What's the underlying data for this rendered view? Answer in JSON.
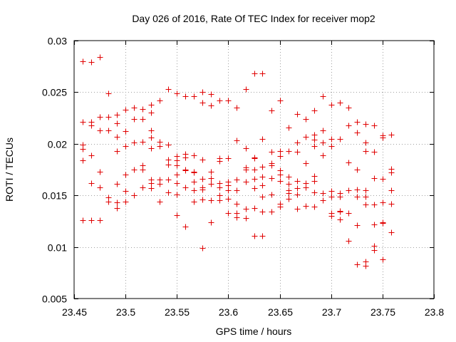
{
  "chart_data": {
    "type": "scatter",
    "title": "Day 026 of 2016, Rate Of TEC Index for receiver mop2",
    "xlabel": "GPS time / hours",
    "ylabel": "ROTI / TECUs",
    "xlim": [
      23.45,
      23.8
    ],
    "ylim": [
      0.005,
      0.03
    ],
    "grid": true,
    "marker": "plus",
    "color": "#e00000",
    "xticks": [
      23.45,
      23.5,
      23.55,
      23.6,
      23.65,
      23.7,
      23.75,
      23.8
    ],
    "xtick_labels": [
      "23.45",
      "23.5",
      "23.55",
      "23.6",
      "23.65",
      "23.7",
      "23.75",
      "23.8"
    ],
    "yticks": [
      0.005,
      0.01,
      0.015,
      0.02,
      0.025,
      0.03
    ],
    "ytick_labels": [
      "0.005",
      "0.01",
      "0.015",
      "0.02",
      "0.025",
      "0.03"
    ],
    "points": [
      [
        23.4583,
        0.028
      ],
      [
        23.4583,
        0.0221
      ],
      [
        23.4583,
        0.0199
      ],
      [
        23.4583,
        0.0195
      ],
      [
        23.4583,
        0.0184
      ],
      [
        23.4583,
        0.0126
      ],
      [
        23.4667,
        0.0279
      ],
      [
        23.4667,
        0.0221
      ],
      [
        23.4667,
        0.0218
      ],
      [
        23.4667,
        0.0189
      ],
      [
        23.4667,
        0.0162
      ],
      [
        23.4667,
        0.0126
      ],
      [
        23.475,
        0.0284
      ],
      [
        23.475,
        0.0226
      ],
      [
        23.475,
        0.0213
      ],
      [
        23.475,
        0.0173
      ],
      [
        23.475,
        0.0158
      ],
      [
        23.475,
        0.0126
      ],
      [
        23.4833,
        0.0249
      ],
      [
        23.4833,
        0.0226
      ],
      [
        23.4833,
        0.0213
      ],
      [
        23.4833,
        0.0148
      ],
      [
        23.4833,
        0.0144
      ],
      [
        23.4917,
        0.0228
      ],
      [
        23.4917,
        0.022
      ],
      [
        23.4917,
        0.0207
      ],
      [
        23.4917,
        0.0193
      ],
      [
        23.4917,
        0.0161
      ],
      [
        23.4917,
        0.0143
      ],
      [
        23.4917,
        0.0138
      ],
      [
        23.5,
        0.0233
      ],
      [
        23.5,
        0.0212
      ],
      [
        23.5,
        0.0198
      ],
      [
        23.5,
        0.017
      ],
      [
        23.5,
        0.0154
      ],
      [
        23.5,
        0.0144
      ],
      [
        23.5083,
        0.0235
      ],
      [
        23.5083,
        0.0224
      ],
      [
        23.5083,
        0.0201
      ],
      [
        23.5083,
        0.0175
      ],
      [
        23.5083,
        0.015
      ],
      [
        23.5167,
        0.0234
      ],
      [
        23.5167,
        0.0224
      ],
      [
        23.5167,
        0.0202
      ],
      [
        23.5167,
        0.0179
      ],
      [
        23.5167,
        0.0175
      ],
      [
        23.5167,
        0.0158
      ],
      [
        23.525,
        0.0238
      ],
      [
        23.525,
        0.023
      ],
      [
        23.525,
        0.0213
      ],
      [
        23.525,
        0.0206
      ],
      [
        23.525,
        0.0196
      ],
      [
        23.525,
        0.0165
      ],
      [
        23.525,
        0.0162
      ],
      [
        23.525,
        0.0157
      ],
      [
        23.5333,
        0.0242
      ],
      [
        23.5333,
        0.0202
      ],
      [
        23.5333,
        0.0198
      ],
      [
        23.5333,
        0.0165
      ],
      [
        23.5333,
        0.0161
      ],
      [
        23.5333,
        0.0144
      ],
      [
        23.5417,
        0.0253
      ],
      [
        23.5417,
        0.0199
      ],
      [
        23.5417,
        0.0185
      ],
      [
        23.5417,
        0.018
      ],
      [
        23.5417,
        0.0165
      ],
      [
        23.5417,
        0.0153
      ],
      [
        23.55,
        0.0249
      ],
      [
        23.55,
        0.0188
      ],
      [
        23.55,
        0.0184
      ],
      [
        23.55,
        0.0179
      ],
      [
        23.55,
        0.017
      ],
      [
        23.55,
        0.0162
      ],
      [
        23.55,
        0.0151
      ],
      [
        23.55,
        0.0131
      ],
      [
        23.5583,
        0.0246
      ],
      [
        23.5583,
        0.019
      ],
      [
        23.5583,
        0.0187
      ],
      [
        23.5583,
        0.0175
      ],
      [
        23.5583,
        0.0174
      ],
      [
        23.5583,
        0.0158
      ],
      [
        23.5583,
        0.012
      ],
      [
        23.5667,
        0.0246
      ],
      [
        23.5667,
        0.0189
      ],
      [
        23.5667,
        0.0173
      ],
      [
        23.5667,
        0.0172
      ],
      [
        23.5667,
        0.0163
      ],
      [
        23.5667,
        0.0155
      ],
      [
        23.5667,
        0.0144
      ],
      [
        23.575,
        0.025
      ],
      [
        23.575,
        0.024
      ],
      [
        23.575,
        0.0185
      ],
      [
        23.575,
        0.0166
      ],
      [
        23.575,
        0.0158
      ],
      [
        23.575,
        0.0156
      ],
      [
        23.575,
        0.0146
      ],
      [
        23.575,
        0.0099
      ],
      [
        23.5833,
        0.0248
      ],
      [
        23.5833,
        0.0237
      ],
      [
        23.5833,
        0.0173
      ],
      [
        23.5833,
        0.0167
      ],
      [
        23.5833,
        0.0161
      ],
      [
        23.5833,
        0.0145
      ],
      [
        23.5833,
        0.0124
      ],
      [
        23.5917,
        0.0242
      ],
      [
        23.5917,
        0.0186
      ],
      [
        23.5917,
        0.0183
      ],
      [
        23.5917,
        0.0162
      ],
      [
        23.5917,
        0.0158
      ],
      [
        23.5917,
        0.015
      ],
      [
        23.5917,
        0.0145
      ],
      [
        23.6,
        0.0242
      ],
      [
        23.6,
        0.0186
      ],
      [
        23.6,
        0.0163
      ],
      [
        23.6,
        0.016
      ],
      [
        23.6,
        0.0155
      ],
      [
        23.6,
        0.0147
      ],
      [
        23.6,
        0.0133
      ],
      [
        23.6083,
        0.0235
      ],
      [
        23.6083,
        0.0203
      ],
      [
        23.6083,
        0.0165
      ],
      [
        23.6083,
        0.0155
      ],
      [
        23.6083,
        0.0142
      ],
      [
        23.6083,
        0.0133
      ],
      [
        23.6083,
        0.0129
      ],
      [
        23.6167,
        0.0253
      ],
      [
        23.6167,
        0.0196
      ],
      [
        23.6167,
        0.0177
      ],
      [
        23.6167,
        0.0175
      ],
      [
        23.6167,
        0.0163
      ],
      [
        23.6167,
        0.0137
      ],
      [
        23.6167,
        0.0128
      ],
      [
        23.625,
        0.0268
      ],
      [
        23.625,
        0.0187
      ],
      [
        23.625,
        0.0186
      ],
      [
        23.625,
        0.0175
      ],
      [
        23.625,
        0.0166
      ],
      [
        23.625,
        0.0157
      ],
      [
        23.625,
        0.0138
      ],
      [
        23.625,
        0.0111
      ],
      [
        23.6333,
        0.0268
      ],
      [
        23.6333,
        0.0205
      ],
      [
        23.6333,
        0.0178
      ],
      [
        23.6333,
        0.0168
      ],
      [
        23.6333,
        0.016
      ],
      [
        23.6333,
        0.0149
      ],
      [
        23.6333,
        0.0134
      ],
      [
        23.6333,
        0.0111
      ],
      [
        23.6417,
        0.0232
      ],
      [
        23.6417,
        0.0192
      ],
      [
        23.6417,
        0.0181
      ],
      [
        23.6417,
        0.0179
      ],
      [
        23.6417,
        0.0167
      ],
      [
        23.6417,
        0.0151
      ],
      [
        23.6417,
        0.0134
      ],
      [
        23.65,
        0.0242
      ],
      [
        23.65,
        0.0193
      ],
      [
        23.65,
        0.0188
      ],
      [
        23.65,
        0.0174
      ],
      [
        23.65,
        0.017
      ],
      [
        23.65,
        0.0164
      ],
      [
        23.65,
        0.0142
      ],
      [
        23.65,
        0.0139
      ],
      [
        23.6583,
        0.0216
      ],
      [
        23.6583,
        0.0193
      ],
      [
        23.6583,
        0.0168
      ],
      [
        23.6583,
        0.0161
      ],
      [
        23.6583,
        0.0155
      ],
      [
        23.6583,
        0.0152
      ],
      [
        23.6583,
        0.0147
      ],
      [
        23.6667,
        0.0229
      ],
      [
        23.6667,
        0.0201
      ],
      [
        23.6667,
        0.0192
      ],
      [
        23.6667,
        0.0164
      ],
      [
        23.6667,
        0.0157
      ],
      [
        23.6667,
        0.0151
      ],
      [
        23.6667,
        0.0137
      ],
      [
        23.675,
        0.0224
      ],
      [
        23.675,
        0.0207
      ],
      [
        23.675,
        0.0181
      ],
      [
        23.675,
        0.0162
      ],
      [
        23.675,
        0.0158
      ],
      [
        23.675,
        0.014
      ],
      [
        23.6833,
        0.0232
      ],
      [
        23.6833,
        0.0209
      ],
      [
        23.6833,
        0.0204
      ],
      [
        23.6833,
        0.0198
      ],
      [
        23.6833,
        0.0169
      ],
      [
        23.6833,
        0.0164
      ],
      [
        23.6833,
        0.0153
      ],
      [
        23.6833,
        0.0139
      ],
      [
        23.6917,
        0.0246
      ],
      [
        23.6917,
        0.0213
      ],
      [
        23.6917,
        0.0201
      ],
      [
        23.6917,
        0.0189
      ],
      [
        23.6917,
        0.0152
      ],
      [
        23.6917,
        0.0152
      ],
      [
        23.6917,
        0.0145
      ],
      [
        23.7,
        0.0238
      ],
      [
        23.7,
        0.0205
      ],
      [
        23.7,
        0.0198
      ],
      [
        23.7,
        0.0154
      ],
      [
        23.7,
        0.0149
      ],
      [
        23.7,
        0.0133
      ],
      [
        23.7,
        0.013
      ],
      [
        23.7083,
        0.024
      ],
      [
        23.7083,
        0.0205
      ],
      [
        23.7083,
        0.0152
      ],
      [
        23.7083,
        0.0149
      ],
      [
        23.7083,
        0.0135
      ],
      [
        23.7083,
        0.0134
      ],
      [
        23.7083,
        0.0127
      ],
      [
        23.7167,
        0.0235
      ],
      [
        23.7167,
        0.0218
      ],
      [
        23.7167,
        0.0182
      ],
      [
        23.7167,
        0.0155
      ],
      [
        23.7167,
        0.0133
      ],
      [
        23.7167,
        0.0106
      ],
      [
        23.725,
        0.0221
      ],
      [
        23.725,
        0.0211
      ],
      [
        23.725,
        0.0175
      ],
      [
        23.725,
        0.0156
      ],
      [
        23.725,
        0.0149
      ],
      [
        23.725,
        0.0121
      ],
      [
        23.725,
        0.0083
      ],
      [
        23.7333,
        0.0219
      ],
      [
        23.7333,
        0.0201
      ],
      [
        23.7333,
        0.0193
      ],
      [
        23.7333,
        0.0155
      ],
      [
        23.7333,
        0.0149
      ],
      [
        23.7333,
        0.0141
      ],
      [
        23.7333,
        0.0086
      ],
      [
        23.7333,
        0.0082
      ],
      [
        23.7417,
        0.0218
      ],
      [
        23.7417,
        0.0192
      ],
      [
        23.7417,
        0.0167
      ],
      [
        23.7417,
        0.0141
      ],
      [
        23.7417,
        0.0122
      ],
      [
        23.7417,
        0.0101
      ],
      [
        23.7417,
        0.0097
      ],
      [
        23.75,
        0.0208
      ],
      [
        23.75,
        0.0206
      ],
      [
        23.75,
        0.0166
      ],
      [
        23.75,
        0.0143
      ],
      [
        23.75,
        0.0124
      ],
      [
        23.75,
        0.0123
      ],
      [
        23.75,
        0.0088
      ],
      [
        23.7583,
        0.0209
      ],
      [
        23.7583,
        0.0176
      ],
      [
        23.7583,
        0.0172
      ],
      [
        23.7583,
        0.0155
      ],
      [
        23.7583,
        0.0142
      ],
      [
        23.7583,
        0.0114
      ]
    ]
  }
}
